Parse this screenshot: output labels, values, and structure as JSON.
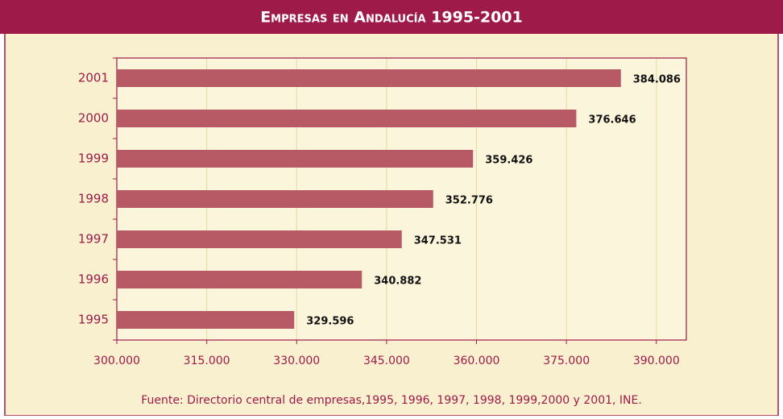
{
  "chart_data": {
    "type": "barh",
    "title": "Empresas en Andalucía 1995-2001",
    "categories": [
      "1995",
      "1996",
      "1997",
      "1998",
      "1999",
      "2000",
      "2001"
    ],
    "values": [
      329596,
      340882,
      347531,
      352776,
      359426,
      376646,
      384086
    ],
    "value_labels": [
      "329.596",
      "340.882",
      "347.531",
      "352.776",
      "359.426",
      "376.646",
      "384.086"
    ],
    "color": "#b85a66",
    "xlim": [
      300000,
      395000
    ],
    "xticks": [
      {
        "value": 300000,
        "label": "300.000"
      },
      {
        "value": 315000,
        "label": "315.000"
      },
      {
        "value": 330000,
        "label": "330.000"
      },
      {
        "value": 345000,
        "label": "345.000"
      },
      {
        "value": 360000,
        "label": "360.000"
      },
      {
        "value": 375000,
        "label": "375.000"
      },
      {
        "value": 390000,
        "label": "390.000"
      }
    ],
    "grid": true,
    "source": "Fuente: Directorio central de empresas,1995, 1996, 1997, 1998, 1999,2000 y 2001, INE."
  }
}
